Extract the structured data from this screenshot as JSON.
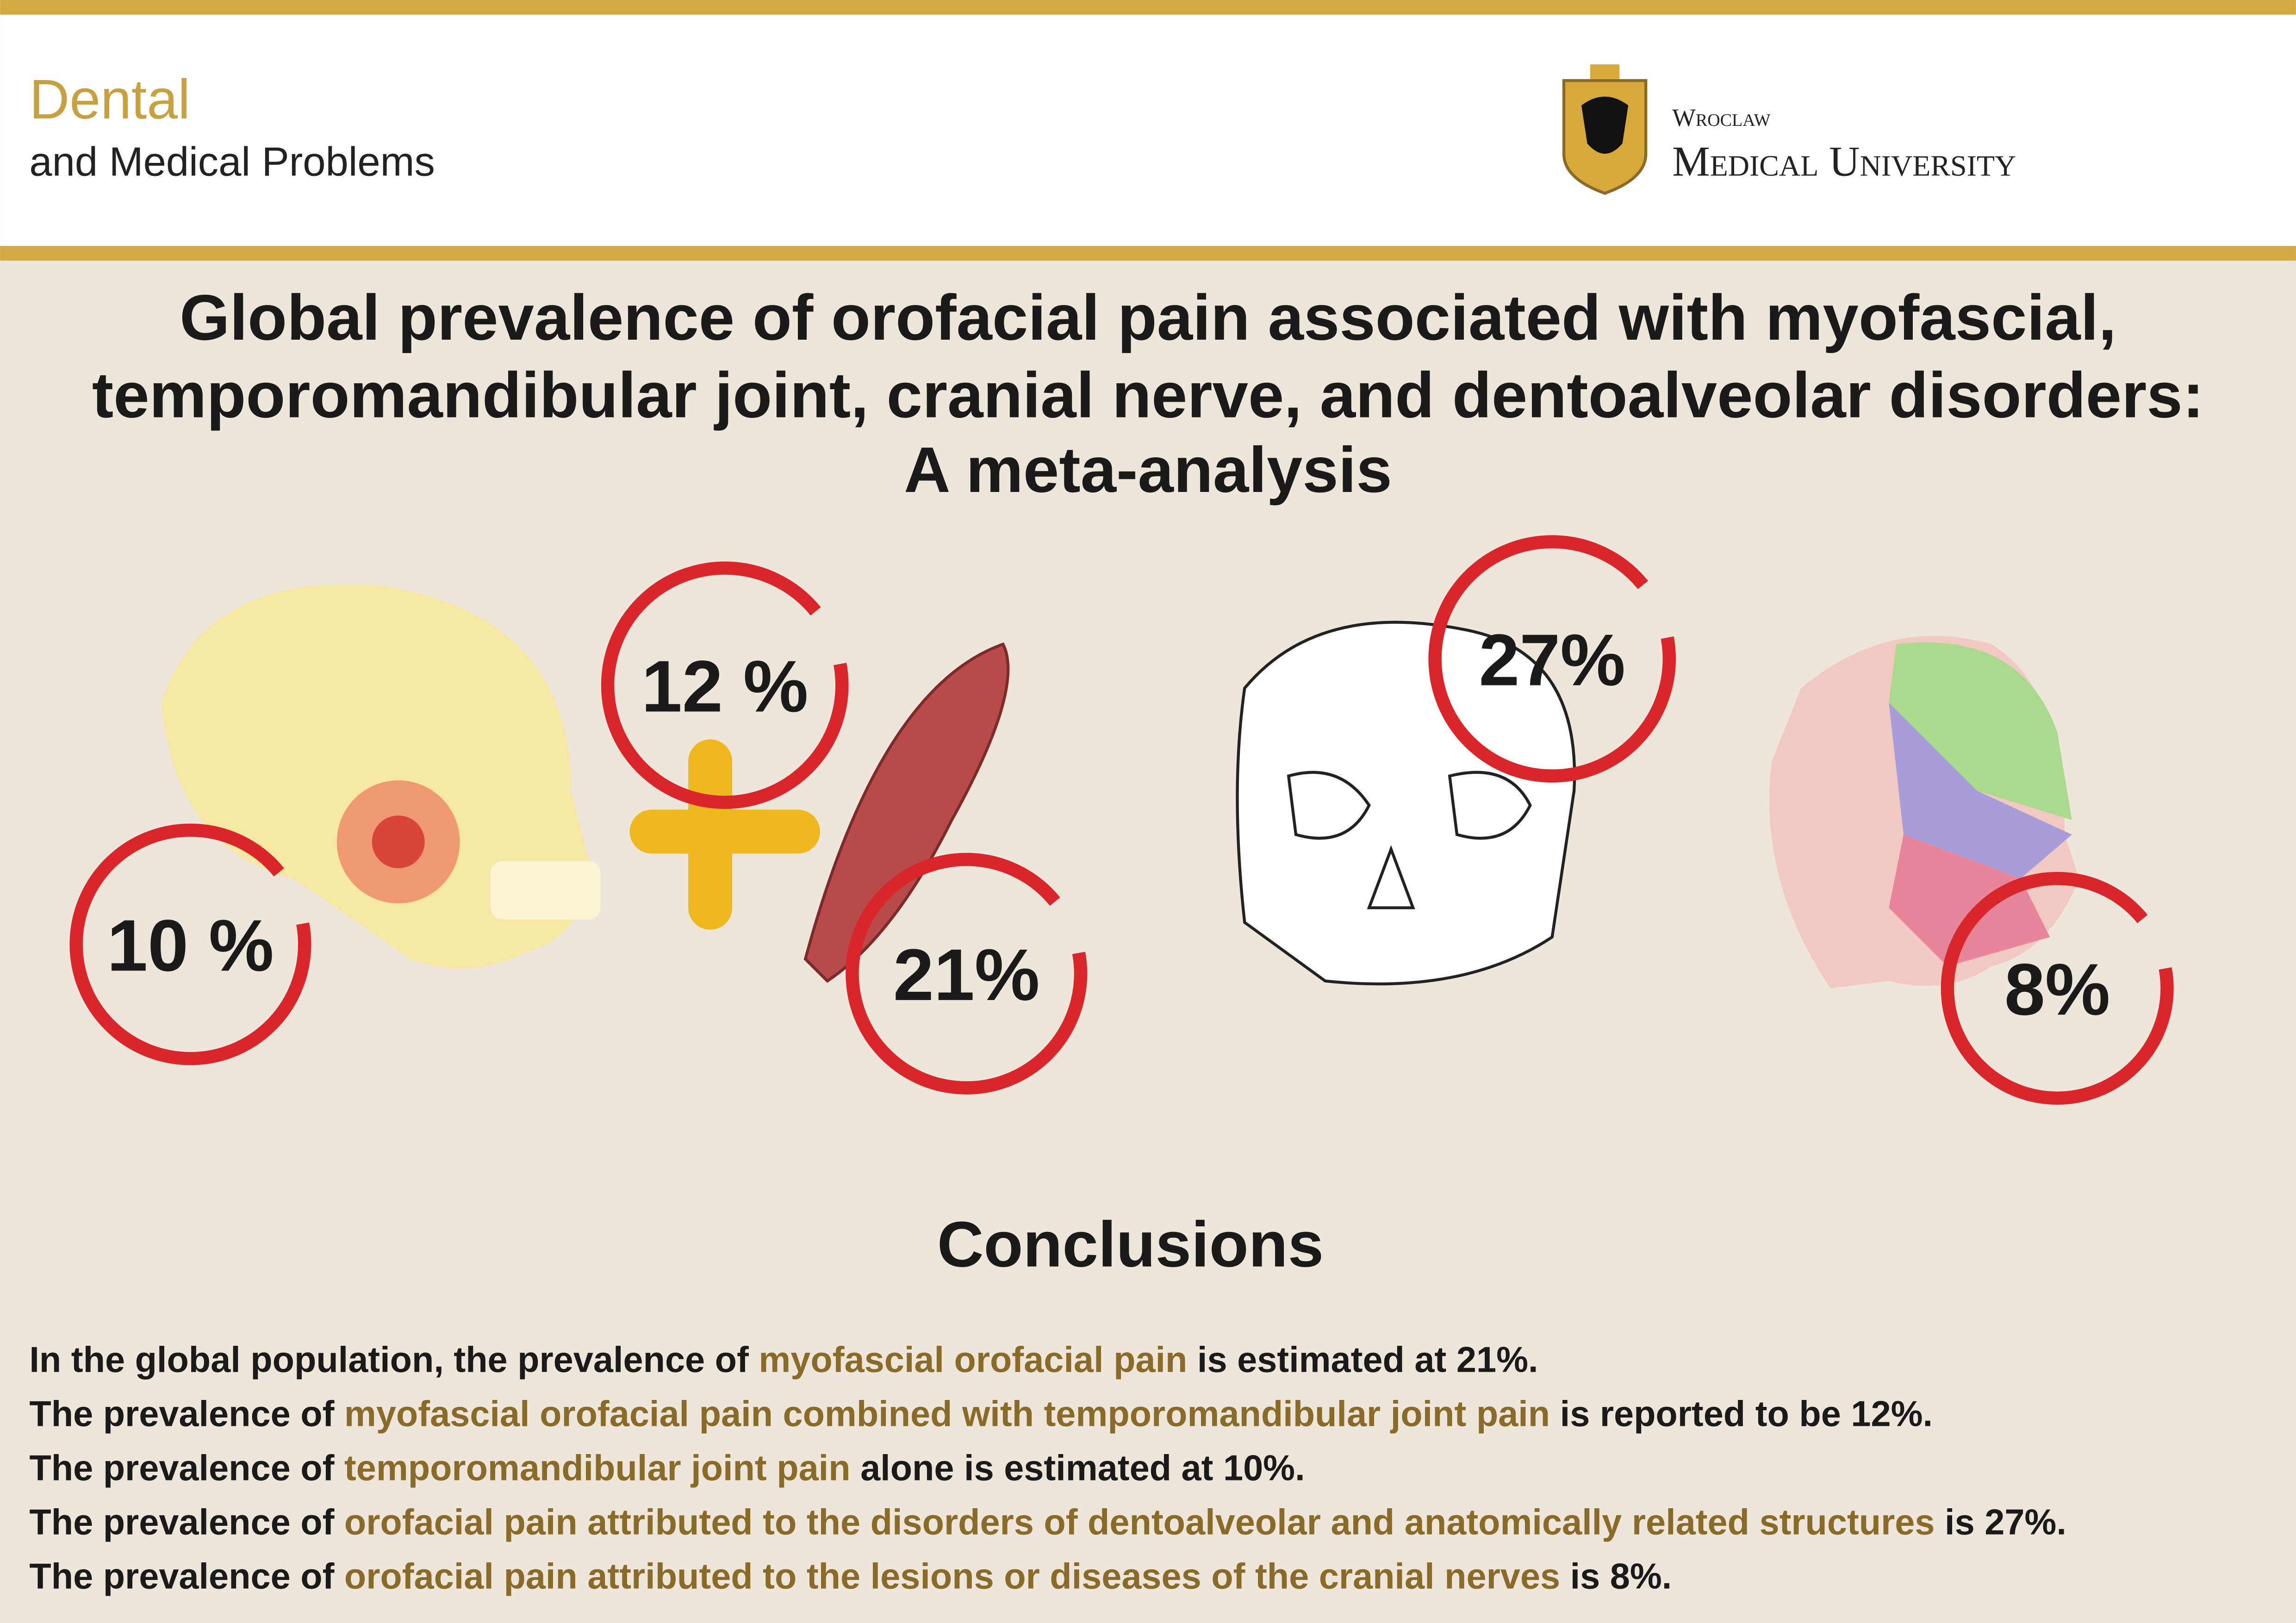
{
  "header": {
    "journal_title": "Dental",
    "journal_subtitle": "and Medical Problems",
    "university_small": "Wroclaw",
    "university_large": "Medical University"
  },
  "title_lines": [
    "Global prevalence of orofacial pain associated with myofascial,",
    "temporomandibular joint, cranial nerve, and dentoalveolar disorders:",
    "A meta-analysis"
  ],
  "stats": [
    "10 %",
    "12 %",
    "21%",
    "27%",
    "8%"
  ],
  "conclusions": {
    "heading": "Conclusions",
    "highlight_color": "#8a6a28",
    "lines": [
      {
        "before": "In the global population, the prevalence of ",
        "highlight": "myofascial orofacial pain",
        "after": " is estimated at 21%."
      },
      {
        "before": "The prevalence of ",
        "highlight": "myofascial orofacial pain combined with temporomandibular joint pain",
        "after": " is reported to be 12%."
      },
      {
        "before": "The prevalence of ",
        "highlight": "temporomandibular joint pain",
        "after": " alone is estimated at 10%."
      },
      {
        "before": "The prevalence of ",
        "highlight": "orofacial pain attributed to the disorders of dentoalveolar and anatomically related structures",
        "after": " is 27%."
      },
      {
        "before": "The prevalence of ",
        "highlight": "orofacial pain attributed to the lesions or diseases of the cranial nerves",
        "after": " is 8%."
      }
    ]
  }
}
